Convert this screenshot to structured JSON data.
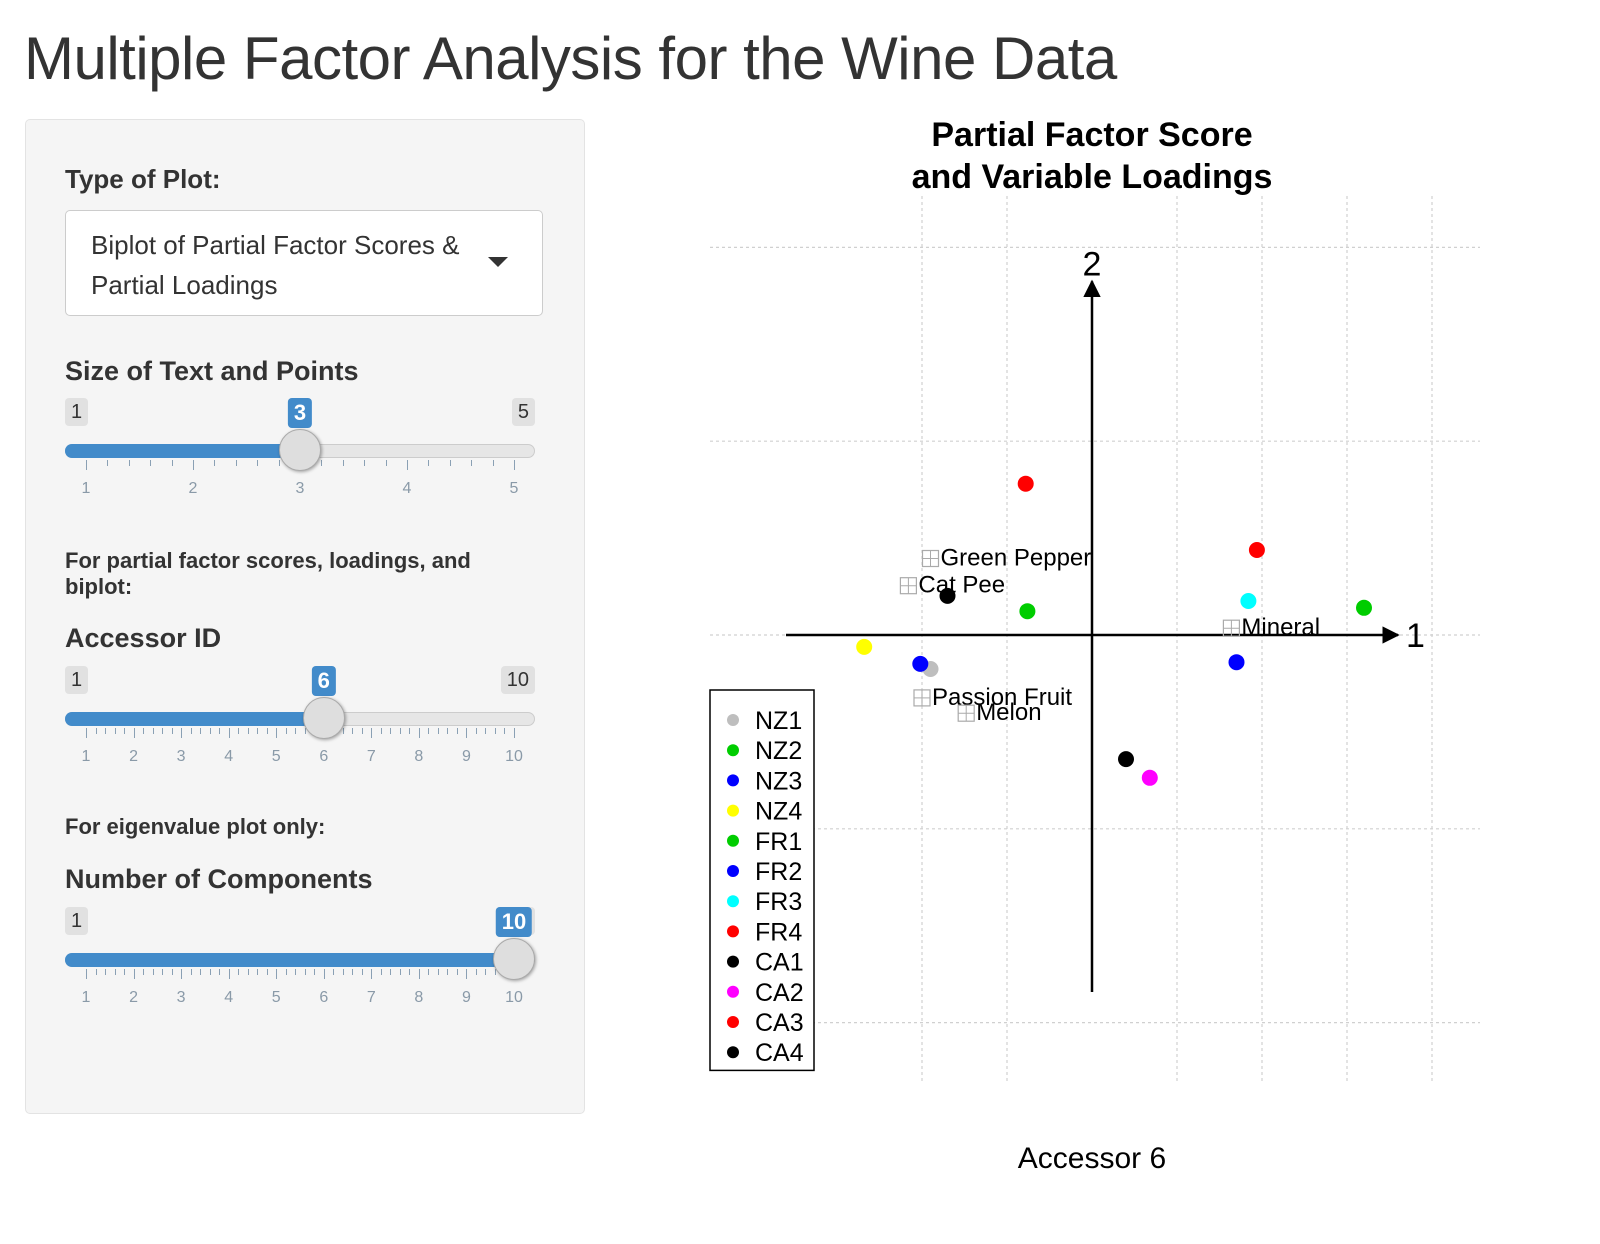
{
  "page_title": "Multiple Factor Analysis for the Wine Data",
  "sidebar": {
    "plot_type_label": "Type of Plot:",
    "plot_type_value": "Biplot of Partial Factor Scores & Partial Loadings",
    "size_slider": {
      "label": "Size of Text and Points",
      "min": 1,
      "max": 5,
      "value": 3,
      "min_text": "1",
      "max_text": "5",
      "value_text": "3",
      "tick_labels": [
        "1",
        "2",
        "3",
        "4",
        "5"
      ]
    },
    "partial_help": "For partial factor scores, loadings, and biplot:",
    "accessor_slider": {
      "label": "Accessor ID",
      "min": 1,
      "max": 10,
      "value": 6,
      "min_text": "1",
      "max_text": "10",
      "value_text": "6",
      "tick_labels": [
        "1",
        "2",
        "3",
        "4",
        "5",
        "6",
        "7",
        "8",
        "9",
        "10"
      ]
    },
    "eigen_help": "For eigenvalue plot only:",
    "components_slider": {
      "label": "Number of Components",
      "min": 1,
      "max": 10,
      "value": 10,
      "min_text": "1",
      "max_text": "10",
      "value_text": "10",
      "tick_labels": [
        "1",
        "2",
        "3",
        "4",
        "5",
        "6",
        "7",
        "8",
        "9",
        "10"
      ]
    }
  },
  "chart_data": {
    "type": "scatter",
    "title": "Partial Factor Score\nand Variable Loadings",
    "xlabel": "Accessor 6",
    "ylabel": "",
    "axis_labels": {
      "x_axis": "1",
      "y_axis": "2"
    },
    "xlim": [
      -2,
      2
    ],
    "ylim": [
      -2,
      2
    ],
    "grid": true,
    "legend_position": "bottom-left",
    "legend": [
      {
        "name": "NZ1",
        "color": "#bebebe"
      },
      {
        "name": "NZ2",
        "color": "#00cd00"
      },
      {
        "name": "NZ3",
        "color": "#0000ff"
      },
      {
        "name": "NZ4",
        "color": "#ffff00"
      },
      {
        "name": "FR1",
        "color": "#00cd00"
      },
      {
        "name": "FR2",
        "color": "#0000ff"
      },
      {
        "name": "FR3",
        "color": "#00ffff"
      },
      {
        "name": "FR4",
        "color": "#ff0000"
      },
      {
        "name": "CA1",
        "color": "#000000"
      },
      {
        "name": "CA2",
        "color": "#ff00ff"
      },
      {
        "name": "CA3",
        "color": "#ff0000"
      },
      {
        "name": "CA4",
        "color": "#000000"
      }
    ],
    "points": [
      {
        "x": -0.95,
        "y": -0.2,
        "color": "#bebebe"
      },
      {
        "x": -0.38,
        "y": 0.14,
        "color": "#00cd00"
      },
      {
        "x": -1.01,
        "y": -0.17,
        "color": "#0000ff"
      },
      {
        "x": -1.34,
        "y": -0.07,
        "color": "#ffff00"
      },
      {
        "x": 1.6,
        "y": 0.16,
        "color": "#00cd00"
      },
      {
        "x": 0.85,
        "y": -0.16,
        "color": "#0000ff"
      },
      {
        "x": 0.92,
        "y": 0.2,
        "color": "#00ffff"
      },
      {
        "x": 0.97,
        "y": 0.5,
        "color": "#ff0000"
      },
      {
        "x": -0.85,
        "y": 0.23,
        "color": "#000000"
      },
      {
        "x": 0.34,
        "y": -0.84,
        "color": "#ff00ff"
      },
      {
        "x": -0.39,
        "y": 0.89,
        "color": "#ff0000"
      },
      {
        "x": 0.2,
        "y": -0.73,
        "color": "#000000"
      }
    ],
    "loadings": [
      {
        "label": "Green Pepper",
        "x": -0.95,
        "y": 0.45
      },
      {
        "label": "Cat Pee",
        "x": -1.08,
        "y": 0.29
      },
      {
        "label": "Mineral",
        "x": 0.82,
        "y": 0.04
      },
      {
        "label": "Passion Fruit",
        "x": -1.0,
        "y": -0.37
      },
      {
        "label": "Melon",
        "x": -0.74,
        "y": -0.46
      }
    ]
  }
}
